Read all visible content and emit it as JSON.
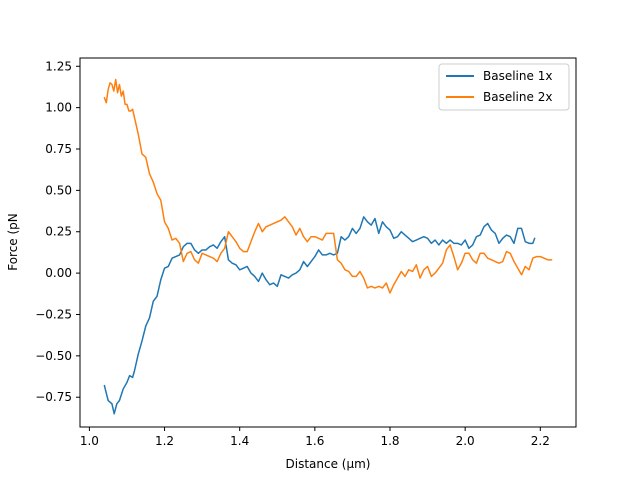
{
  "chart_data": {
    "type": "line",
    "title": "",
    "xlabel": "Distance (μm)",
    "ylabel": "Force (pN",
    "xlim": [
      0.975,
      2.295
    ],
    "ylim": [
      -0.93,
      1.3
    ],
    "xticks": [
      1.0,
      1.2,
      1.4,
      1.6,
      1.8,
      2.0,
      2.2
    ],
    "xtick_labels": [
      "1.0",
      "1.2",
      "1.4",
      "1.6",
      "1.8",
      "2.0",
      "2.2"
    ],
    "yticks": [
      -0.75,
      -0.5,
      -0.25,
      0.0,
      0.25,
      0.5,
      0.75,
      1.0,
      1.25
    ],
    "ytick_labels": [
      "−0.75",
      "−0.50",
      "−0.25",
      "0.00",
      "0.25",
      "0.50",
      "0.75",
      "1.00",
      "1.25"
    ],
    "grid": false,
    "legend_position": "top-right",
    "series": [
      {
        "name": "Baseline 1x",
        "color": "#1f77b4",
        "points": [
          [
            1.04,
            -0.68
          ],
          [
            1.05,
            -0.77
          ],
          [
            1.06,
            -0.79
          ],
          [
            1.066,
            -0.85
          ],
          [
            1.073,
            -0.79
          ],
          [
            1.08,
            -0.77
          ],
          [
            1.09,
            -0.7
          ],
          [
            1.1,
            -0.66
          ],
          [
            1.107,
            -0.62
          ],
          [
            1.115,
            -0.63
          ],
          [
            1.12,
            -0.59
          ],
          [
            1.13,
            -0.49
          ],
          [
            1.14,
            -0.41
          ],
          [
            1.15,
            -0.32
          ],
          [
            1.16,
            -0.27
          ],
          [
            1.17,
            -0.17
          ],
          [
            1.18,
            -0.14
          ],
          [
            1.19,
            -0.04
          ],
          [
            1.2,
            0.03
          ],
          [
            1.21,
            0.04
          ],
          [
            1.22,
            0.09
          ],
          [
            1.23,
            0.1
          ],
          [
            1.24,
            0.11
          ],
          [
            1.25,
            0.16
          ],
          [
            1.26,
            0.18
          ],
          [
            1.27,
            0.18
          ],
          [
            1.28,
            0.14
          ],
          [
            1.29,
            0.12
          ],
          [
            1.3,
            0.14
          ],
          [
            1.31,
            0.14
          ],
          [
            1.32,
            0.16
          ],
          [
            1.33,
            0.17
          ],
          [
            1.34,
            0.15
          ],
          [
            1.35,
            0.19
          ],
          [
            1.36,
            0.22
          ],
          [
            1.37,
            0.08
          ],
          [
            1.38,
            0.06
          ],
          [
            1.39,
            0.05
          ],
          [
            1.4,
            0.02
          ],
          [
            1.41,
            0.03
          ],
          [
            1.42,
            0.04
          ],
          [
            1.43,
            0.0
          ],
          [
            1.44,
            -0.02
          ],
          [
            1.45,
            -0.05
          ],
          [
            1.46,
            0.0
          ],
          [
            1.47,
            -0.04
          ],
          [
            1.48,
            -0.07
          ],
          [
            1.49,
            -0.06
          ],
          [
            1.5,
            -0.08
          ],
          [
            1.51,
            -0.01
          ],
          [
            1.52,
            -0.02
          ],
          [
            1.53,
            -0.03
          ],
          [
            1.54,
            -0.01
          ],
          [
            1.55,
            0.0
          ],
          [
            1.56,
            0.02
          ],
          [
            1.57,
            0.07
          ],
          [
            1.58,
            0.04
          ],
          [
            1.59,
            0.07
          ],
          [
            1.6,
            0.1
          ],
          [
            1.61,
            0.14
          ],
          [
            1.62,
            0.11
          ],
          [
            1.63,
            0.11
          ],
          [
            1.64,
            0.12
          ],
          [
            1.65,
            0.11
          ],
          [
            1.66,
            0.12
          ],
          [
            1.67,
            0.22
          ],
          [
            1.68,
            0.2
          ],
          [
            1.69,
            0.22
          ],
          [
            1.7,
            0.27
          ],
          [
            1.71,
            0.24
          ],
          [
            1.72,
            0.27
          ],
          [
            1.73,
            0.34
          ],
          [
            1.74,
            0.31
          ],
          [
            1.75,
            0.29
          ],
          [
            1.76,
            0.33
          ],
          [
            1.77,
            0.24
          ],
          [
            1.78,
            0.31
          ],
          [
            1.79,
            0.28
          ],
          [
            1.8,
            0.26
          ],
          [
            1.81,
            0.21
          ],
          [
            1.82,
            0.22
          ],
          [
            1.83,
            0.25
          ],
          [
            1.84,
            0.23
          ],
          [
            1.85,
            0.21
          ],
          [
            1.86,
            0.19
          ],
          [
            1.87,
            0.2
          ],
          [
            1.88,
            0.21
          ],
          [
            1.89,
            0.22
          ],
          [
            1.9,
            0.21
          ],
          [
            1.91,
            0.18
          ],
          [
            1.92,
            0.2
          ],
          [
            1.93,
            0.17
          ],
          [
            1.94,
            0.2
          ],
          [
            1.95,
            0.18
          ],
          [
            1.96,
            0.2
          ],
          [
            1.97,
            0.18
          ],
          [
            1.98,
            0.18
          ],
          [
            1.99,
            0.17
          ],
          [
            2.0,
            0.2
          ],
          [
            2.01,
            0.15
          ],
          [
            2.02,
            0.17
          ],
          [
            2.03,
            0.22
          ],
          [
            2.04,
            0.23
          ],
          [
            2.05,
            0.28
          ],
          [
            2.06,
            0.3
          ],
          [
            2.07,
            0.26
          ],
          [
            2.08,
            0.24
          ],
          [
            2.09,
            0.18
          ],
          [
            2.1,
            0.21
          ],
          [
            2.11,
            0.23
          ],
          [
            2.12,
            0.22
          ],
          [
            2.13,
            0.18
          ],
          [
            2.14,
            0.27
          ],
          [
            2.15,
            0.27
          ],
          [
            2.16,
            0.19
          ],
          [
            2.17,
            0.18
          ],
          [
            2.18,
            0.18
          ],
          [
            2.185,
            0.21
          ]
        ]
      },
      {
        "name": "Baseline 2x",
        "color": "#ff7f0e",
        "points": [
          [
            1.04,
            1.06
          ],
          [
            1.045,
            1.03
          ],
          [
            1.05,
            1.11
          ],
          [
            1.055,
            1.15
          ],
          [
            1.06,
            1.14
          ],
          [
            1.065,
            1.1
          ],
          [
            1.07,
            1.17
          ],
          [
            1.075,
            1.09
          ],
          [
            1.08,
            1.14
          ],
          [
            1.085,
            1.07
          ],
          [
            1.09,
            1.1
          ],
          [
            1.095,
            1.02
          ],
          [
            1.1,
            1.02
          ],
          [
            1.105,
            0.98
          ],
          [
            1.11,
            0.98
          ],
          [
            1.115,
            0.99
          ],
          [
            1.12,
            0.94
          ],
          [
            1.13,
            0.84
          ],
          [
            1.14,
            0.72
          ],
          [
            1.15,
            0.7
          ],
          [
            1.16,
            0.6
          ],
          [
            1.17,
            0.55
          ],
          [
            1.18,
            0.48
          ],
          [
            1.19,
            0.44
          ],
          [
            1.2,
            0.31
          ],
          [
            1.21,
            0.27
          ],
          [
            1.22,
            0.2
          ],
          [
            1.23,
            0.21
          ],
          [
            1.24,
            0.18
          ],
          [
            1.25,
            0.07
          ],
          [
            1.26,
            0.12
          ],
          [
            1.27,
            0.13
          ],
          [
            1.28,
            0.08
          ],
          [
            1.29,
            0.06
          ],
          [
            1.3,
            0.12
          ],
          [
            1.31,
            0.11
          ],
          [
            1.32,
            0.1
          ],
          [
            1.33,
            0.09
          ],
          [
            1.34,
            0.07
          ],
          [
            1.35,
            0.12
          ],
          [
            1.36,
            0.15
          ],
          [
            1.37,
            0.25
          ],
          [
            1.38,
            0.22
          ],
          [
            1.39,
            0.19
          ],
          [
            1.4,
            0.15
          ],
          [
            1.41,
            0.13
          ],
          [
            1.42,
            0.13
          ],
          [
            1.43,
            0.19
          ],
          [
            1.44,
            0.25
          ],
          [
            1.45,
            0.3
          ],
          [
            1.46,
            0.25
          ],
          [
            1.47,
            0.28
          ],
          [
            1.48,
            0.29
          ],
          [
            1.49,
            0.3
          ],
          [
            1.5,
            0.31
          ],
          [
            1.51,
            0.32
          ],
          [
            1.52,
            0.34
          ],
          [
            1.53,
            0.31
          ],
          [
            1.54,
            0.28
          ],
          [
            1.55,
            0.23
          ],
          [
            1.56,
            0.27
          ],
          [
            1.57,
            0.22
          ],
          [
            1.58,
            0.19
          ],
          [
            1.59,
            0.22
          ],
          [
            1.6,
            0.22
          ],
          [
            1.61,
            0.21
          ],
          [
            1.62,
            0.2
          ],
          [
            1.63,
            0.24
          ],
          [
            1.64,
            0.24
          ],
          [
            1.65,
            0.24
          ],
          [
            1.66,
            0.08
          ],
          [
            1.67,
            0.06
          ],
          [
            1.68,
            0.02
          ],
          [
            1.69,
            0.01
          ],
          [
            1.7,
            -0.02
          ],
          [
            1.71,
            -0.02
          ],
          [
            1.72,
            0.01
          ],
          [
            1.73,
            -0.03
          ],
          [
            1.74,
            -0.09
          ],
          [
            1.75,
            -0.08
          ],
          [
            1.76,
            -0.09
          ],
          [
            1.77,
            -0.08
          ],
          [
            1.78,
            -0.09
          ],
          [
            1.79,
            -0.06
          ],
          [
            1.8,
            -0.12
          ],
          [
            1.81,
            -0.07
          ],
          [
            1.82,
            -0.03
          ],
          [
            1.83,
            0.01
          ],
          [
            1.84,
            -0.02
          ],
          [
            1.85,
            0.02
          ],
          [
            1.86,
            0.01
          ],
          [
            1.87,
            0.05
          ],
          [
            1.88,
            -0.03
          ],
          [
            1.89,
            0.02
          ],
          [
            1.9,
            0.04
          ],
          [
            1.91,
            -0.02
          ],
          [
            1.92,
            0.0
          ],
          [
            1.93,
            0.03
          ],
          [
            1.94,
            0.06
          ],
          [
            1.95,
            0.14
          ],
          [
            1.96,
            0.17
          ],
          [
            1.97,
            0.1
          ],
          [
            1.98,
            0.02
          ],
          [
            1.99,
            0.06
          ],
          [
            2.0,
            0.12
          ],
          [
            2.01,
            0.12
          ],
          [
            2.02,
            0.08
          ],
          [
            2.03,
            0.06
          ],
          [
            2.04,
            0.12
          ],
          [
            2.05,
            0.12
          ],
          [
            2.06,
            0.09
          ],
          [
            2.07,
            0.08
          ],
          [
            2.08,
            0.07
          ],
          [
            2.09,
            0.06
          ],
          [
            2.1,
            0.07
          ],
          [
            2.11,
            0.13
          ],
          [
            2.12,
            0.12
          ],
          [
            2.13,
            0.07
          ],
          [
            2.14,
            0.03
          ],
          [
            2.15,
            -0.01
          ],
          [
            2.16,
            0.04
          ],
          [
            2.17,
            0.02
          ],
          [
            2.18,
            0.09
          ],
          [
            2.19,
            0.1
          ],
          [
            2.2,
            0.1
          ],
          [
            2.21,
            0.09
          ],
          [
            2.22,
            0.08
          ],
          [
            2.23,
            0.08
          ]
        ]
      }
    ]
  }
}
